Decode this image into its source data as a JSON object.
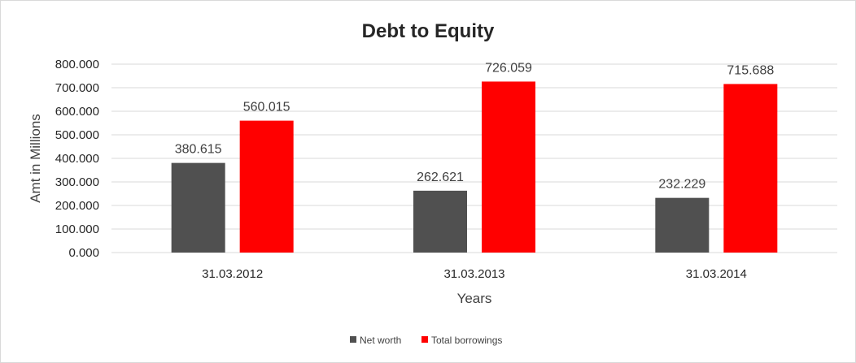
{
  "chart_data": {
    "type": "bar",
    "title": "Debt to Equity",
    "xlabel": "Years",
    "ylabel": "Amt in Millions",
    "categories": [
      "31.03.2012",
      "31.03.2013",
      "31.03.2014"
    ],
    "series": [
      {
        "name": "Net worth",
        "color": "#505050",
        "values": [
          380.615,
          262.621,
          232.229
        ]
      },
      {
        "name": "Total borrowings",
        "color": "#ff0000",
        "values": [
          560.015,
          726.059,
          715.688
        ]
      }
    ],
    "ylim": [
      0,
      800
    ],
    "yticks": [
      "0.000",
      "100.000",
      "200.000",
      "300.000",
      "400.000",
      "500.000",
      "600.000",
      "700.000",
      "800.000"
    ],
    "data_labels": [
      [
        "380.615",
        "262.621",
        "232.229"
      ],
      [
        "560.015",
        "726.059",
        "715.688"
      ]
    ],
    "grid": true,
    "legend_position": "bottom"
  }
}
